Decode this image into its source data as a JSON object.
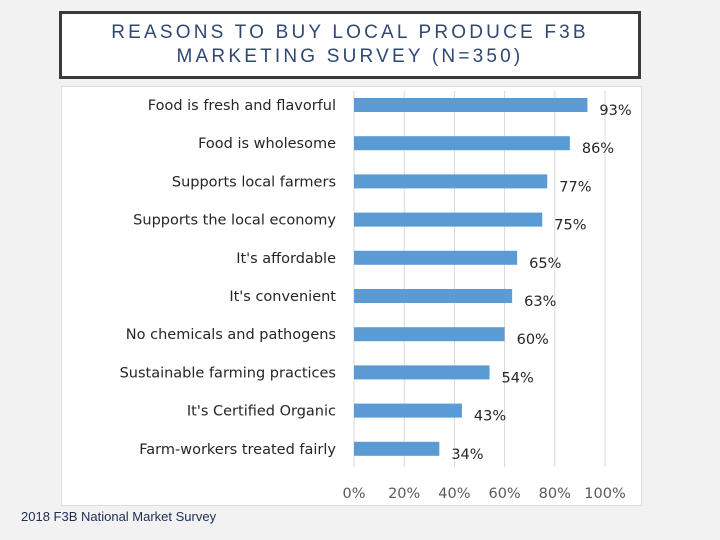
{
  "title": {
    "line1": "REASONS TO BUY LOCAL PRODUCE F3B",
    "line2": "MARKETING SURVEY (N=350)"
  },
  "source_note": "2018 F3B National Market Survey",
  "colors": {
    "bar": "#5b9bd5",
    "gridline": "#d9d9d9",
    "label_text": "#262626",
    "tick_text": "#595959",
    "title_text": "#2e4873"
  },
  "chart_data": {
    "type": "bar",
    "orientation": "horizontal",
    "categories": [
      "Food is fresh and flavorful",
      "Food is wholesome",
      "Supports local farmers",
      "Supports the local economy",
      "It's affordable",
      "It's convenient",
      "No chemicals and pathogens",
      "Sustainable farming practices",
      "It's Certified Organic",
      "Farm-workers treated fairly"
    ],
    "values": [
      93,
      86,
      77,
      75,
      65,
      63,
      60,
      54,
      43,
      34
    ],
    "data_labels": [
      "93%",
      "86%",
      "77%",
      "75%",
      "65%",
      "63%",
      "60%",
      "54%",
      "43%",
      "34%"
    ],
    "xlim": [
      0,
      100
    ],
    "xticks": [
      0,
      20,
      40,
      60,
      80,
      100
    ],
    "xtick_labels": [
      "0%",
      "20%",
      "40%",
      "60%",
      "80%",
      "100%"
    ],
    "grid": true,
    "legend": "none"
  }
}
